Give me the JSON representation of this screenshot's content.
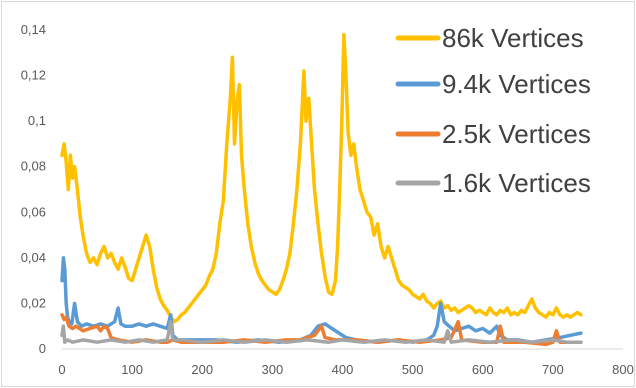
{
  "chart_data": {
    "type": "line",
    "title": "",
    "xlabel": "",
    "ylabel": "",
    "xlim": [
      0,
      800
    ],
    "ylim": [
      0,
      0.14
    ],
    "x_ticks": [
      "0",
      "100",
      "200",
      "300",
      "400",
      "500",
      "600",
      "700",
      "800"
    ],
    "y_ticks": [
      "0",
      "0,02",
      "0,04",
      "0,06",
      "0,08",
      "0,1",
      "0,12",
      "0,14"
    ],
    "grid": false,
    "legend_position": "top-right",
    "series": [
      {
        "name": "86k Vertices",
        "color": "#FFC000",
        "points": [
          [
            0,
            0.085
          ],
          [
            3,
            0.09
          ],
          [
            6,
            0.082
          ],
          [
            9,
            0.07
          ],
          [
            12,
            0.085
          ],
          [
            15,
            0.075
          ],
          [
            18,
            0.08
          ],
          [
            22,
            0.07
          ],
          [
            26,
            0.058
          ],
          [
            30,
            0.05
          ],
          [
            35,
            0.042
          ],
          [
            40,
            0.038
          ],
          [
            45,
            0.04
          ],
          [
            50,
            0.037
          ],
          [
            55,
            0.042
          ],
          [
            60,
            0.045
          ],
          [
            65,
            0.04
          ],
          [
            70,
            0.042
          ],
          [
            75,
            0.038
          ],
          [
            80,
            0.035
          ],
          [
            85,
            0.04
          ],
          [
            90,
            0.036
          ],
          [
            95,
            0.031
          ],
          [
            100,
            0.03
          ],
          [
            105,
            0.035
          ],
          [
            110,
            0.04
          ],
          [
            115,
            0.045
          ],
          [
            120,
            0.05
          ],
          [
            125,
            0.045
          ],
          [
            130,
            0.035
          ],
          [
            135,
            0.027
          ],
          [
            140,
            0.022
          ],
          [
            145,
            0.019
          ],
          [
            150,
            0.017
          ],
          [
            155,
            0.014
          ],
          [
            160,
            0.012
          ],
          [
            165,
            0.013
          ],
          [
            170,
            0.015
          ],
          [
            175,
            0.016
          ],
          [
            180,
            0.018
          ],
          [
            185,
            0.02
          ],
          [
            190,
            0.022
          ],
          [
            195,
            0.024
          ],
          [
            200,
            0.026
          ],
          [
            205,
            0.028
          ],
          [
            210,
            0.032
          ],
          [
            215,
            0.035
          ],
          [
            220,
            0.042
          ],
          [
            225,
            0.055
          ],
          [
            230,
            0.065
          ],
          [
            235,
            0.09
          ],
          [
            240,
            0.11
          ],
          [
            243,
            0.128
          ],
          [
            246,
            0.09
          ],
          [
            250,
            0.11
          ],
          [
            253,
            0.116
          ],
          [
            256,
            0.085
          ],
          [
            260,
            0.07
          ],
          [
            265,
            0.055
          ],
          [
            270,
            0.045
          ],
          [
            275,
            0.038
          ],
          [
            280,
            0.033
          ],
          [
            285,
            0.03
          ],
          [
            290,
            0.028
          ],
          [
            295,
            0.026
          ],
          [
            300,
            0.025
          ],
          [
            305,
            0.024
          ],
          [
            310,
            0.026
          ],
          [
            315,
            0.03
          ],
          [
            320,
            0.035
          ],
          [
            325,
            0.042
          ],
          [
            330,
            0.055
          ],
          [
            335,
            0.07
          ],
          [
            340,
            0.09
          ],
          [
            345,
            0.122
          ],
          [
            348,
            0.1
          ],
          [
            352,
            0.11
          ],
          [
            356,
            0.09
          ],
          [
            360,
            0.07
          ],
          [
            365,
            0.055
          ],
          [
            370,
            0.042
          ],
          [
            375,
            0.032
          ],
          [
            380,
            0.025
          ],
          [
            385,
            0.024
          ],
          [
            390,
            0.03
          ],
          [
            393,
            0.045
          ],
          [
            396,
            0.07
          ],
          [
            399,
            0.1
          ],
          [
            402,
            0.138
          ],
          [
            405,
            0.12
          ],
          [
            408,
            0.095
          ],
          [
            412,
            0.085
          ],
          [
            416,
            0.09
          ],
          [
            420,
            0.08
          ],
          [
            425,
            0.07
          ],
          [
            430,
            0.065
          ],
          [
            435,
            0.06
          ],
          [
            440,
            0.058
          ],
          [
            445,
            0.05
          ],
          [
            450,
            0.055
          ],
          [
            455,
            0.045
          ],
          [
            460,
            0.04
          ],
          [
            465,
            0.045
          ],
          [
            470,
            0.04
          ],
          [
            475,
            0.035
          ],
          [
            480,
            0.03
          ],
          [
            485,
            0.028
          ],
          [
            490,
            0.027
          ],
          [
            495,
            0.026
          ],
          [
            500,
            0.024
          ],
          [
            505,
            0.023
          ],
          [
            510,
            0.022
          ],
          [
            515,
            0.024
          ],
          [
            520,
            0.021
          ],
          [
            525,
            0.02
          ],
          [
            530,
            0.018
          ],
          [
            535,
            0.02
          ],
          [
            540,
            0.021
          ],
          [
            545,
            0.018
          ],
          [
            550,
            0.019
          ],
          [
            555,
            0.017
          ],
          [
            560,
            0.018
          ],
          [
            565,
            0.016
          ],
          [
            570,
            0.017
          ],
          [
            575,
            0.018
          ],
          [
            580,
            0.019
          ],
          [
            585,
            0.018
          ],
          [
            590,
            0.016
          ],
          [
            595,
            0.017
          ],
          [
            600,
            0.016
          ],
          [
            605,
            0.015
          ],
          [
            610,
            0.018
          ],
          [
            615,
            0.016
          ],
          [
            620,
            0.015
          ],
          [
            625,
            0.017
          ],
          [
            630,
            0.016
          ],
          [
            635,
            0.018
          ],
          [
            640,
            0.015
          ],
          [
            645,
            0.016
          ],
          [
            650,
            0.015
          ],
          [
            655,
            0.017
          ],
          [
            660,
            0.016
          ],
          [
            665,
            0.019
          ],
          [
            670,
            0.022
          ],
          [
            675,
            0.018
          ],
          [
            680,
            0.016
          ],
          [
            685,
            0.015
          ],
          [
            690,
            0.014
          ],
          [
            695,
            0.016
          ],
          [
            700,
            0.015
          ],
          [
            705,
            0.018
          ],
          [
            710,
            0.015
          ],
          [
            715,
            0.014
          ],
          [
            720,
            0.015
          ],
          [
            725,
            0.014
          ],
          [
            730,
            0.015
          ],
          [
            735,
            0.016
          ],
          [
            740,
            0.015
          ]
        ]
      },
      {
        "name": "9.4k Vertices",
        "color": "#5B9BD5",
        "points": [
          [
            0,
            0.03
          ],
          [
            2,
            0.04
          ],
          [
            4,
            0.035
          ],
          [
            6,
            0.02
          ],
          [
            8,
            0.014
          ],
          [
            10,
            0.012
          ],
          [
            14,
            0.011
          ],
          [
            18,
            0.02
          ],
          [
            22,
            0.012
          ],
          [
            28,
            0.01
          ],
          [
            35,
            0.011
          ],
          [
            45,
            0.01
          ],
          [
            55,
            0.011
          ],
          [
            65,
            0.01
          ],
          [
            75,
            0.012
          ],
          [
            80,
            0.018
          ],
          [
            84,
            0.011
          ],
          [
            90,
            0.01
          ],
          [
            100,
            0.01
          ],
          [
            110,
            0.011
          ],
          [
            120,
            0.01
          ],
          [
            130,
            0.011
          ],
          [
            140,
            0.01
          ],
          [
            150,
            0.009
          ],
          [
            155,
            0.015
          ],
          [
            158,
            0.006
          ],
          [
            165,
            0.004
          ],
          [
            180,
            0.004
          ],
          [
            200,
            0.004
          ],
          [
            220,
            0.004
          ],
          [
            250,
            0.003
          ],
          [
            280,
            0.004
          ],
          [
            310,
            0.003
          ],
          [
            340,
            0.004
          ],
          [
            355,
            0.006
          ],
          [
            365,
            0.01
          ],
          [
            375,
            0.011
          ],
          [
            385,
            0.009
          ],
          [
            395,
            0.007
          ],
          [
            405,
            0.005
          ],
          [
            420,
            0.004
          ],
          [
            450,
            0.003
          ],
          [
            480,
            0.004
          ],
          [
            500,
            0.003
          ],
          [
            520,
            0.004
          ],
          [
            530,
            0.006
          ],
          [
            535,
            0.01
          ],
          [
            540,
            0.02
          ],
          [
            545,
            0.012
          ],
          [
            552,
            0.01
          ],
          [
            560,
            0.008
          ],
          [
            570,
            0.009
          ],
          [
            580,
            0.01
          ],
          [
            590,
            0.008
          ],
          [
            600,
            0.009
          ],
          [
            610,
            0.007
          ],
          [
            620,
            0.01
          ],
          [
            625,
            0.006
          ],
          [
            635,
            0.004
          ],
          [
            650,
            0.004
          ],
          [
            670,
            0.003
          ],
          [
            690,
            0.004
          ],
          [
            710,
            0.005
          ],
          [
            725,
            0.006
          ],
          [
            740,
            0.007
          ]
        ]
      },
      {
        "name": "2.5k  Vertices",
        "color": "#ED7D31",
        "points": [
          [
            0,
            0.015
          ],
          [
            3,
            0.013
          ],
          [
            6,
            0.014
          ],
          [
            10,
            0.01
          ],
          [
            15,
            0.009
          ],
          [
            20,
            0.01
          ],
          [
            30,
            0.008
          ],
          [
            40,
            0.009
          ],
          [
            50,
            0.01
          ],
          [
            55,
            0.008
          ],
          [
            60,
            0.01
          ],
          [
            65,
            0.009
          ],
          [
            70,
            0.005
          ],
          [
            80,
            0.004
          ],
          [
            100,
            0.003
          ],
          [
            120,
            0.004
          ],
          [
            140,
            0.003
          ],
          [
            150,
            0.003
          ],
          [
            158,
            0.004
          ],
          [
            170,
            0.003
          ],
          [
            200,
            0.003
          ],
          [
            230,
            0.003
          ],
          [
            260,
            0.004
          ],
          [
            290,
            0.003
          ],
          [
            320,
            0.004
          ],
          [
            340,
            0.004
          ],
          [
            350,
            0.005
          ],
          [
            360,
            0.006
          ],
          [
            370,
            0.01
          ],
          [
            375,
            0.005
          ],
          [
            390,
            0.004
          ],
          [
            420,
            0.004
          ],
          [
            450,
            0.003
          ],
          [
            480,
            0.004
          ],
          [
            510,
            0.003
          ],
          [
            540,
            0.004
          ],
          [
            555,
            0.005
          ],
          [
            565,
            0.012
          ],
          [
            570,
            0.004
          ],
          [
            600,
            0.003
          ],
          [
            620,
            0.003
          ],
          [
            625,
            0.01
          ],
          [
            630,
            0.003
          ],
          [
            660,
            0.003
          ],
          [
            690,
            0.002
          ],
          [
            700,
            0.003
          ],
          [
            705,
            0.008
          ],
          [
            710,
            0.003
          ],
          [
            740,
            0.003
          ]
        ]
      },
      {
        "name": "1.6k Vertices",
        "color": "#A5A5A5",
        "points": [
          [
            0,
            0.006
          ],
          [
            2,
            0.01
          ],
          [
            4,
            0.003
          ],
          [
            8,
            0.004
          ],
          [
            15,
            0.003
          ],
          [
            30,
            0.004
          ],
          [
            50,
            0.003
          ],
          [
            70,
            0.004
          ],
          [
            90,
            0.003
          ],
          [
            110,
            0.004
          ],
          [
            130,
            0.003
          ],
          [
            150,
            0.004
          ],
          [
            155,
            0.012
          ],
          [
            158,
            0.004
          ],
          [
            170,
            0.004
          ],
          [
            200,
            0.003
          ],
          [
            230,
            0.004
          ],
          [
            260,
            0.003
          ],
          [
            290,
            0.004
          ],
          [
            320,
            0.003
          ],
          [
            350,
            0.004
          ],
          [
            380,
            0.003
          ],
          [
            400,
            0.004
          ],
          [
            430,
            0.003
          ],
          [
            460,
            0.004
          ],
          [
            490,
            0.003
          ],
          [
            520,
            0.004
          ],
          [
            545,
            0.003
          ],
          [
            550,
            0.008
          ],
          [
            555,
            0.003
          ],
          [
            580,
            0.004
          ],
          [
            610,
            0.003
          ],
          [
            640,
            0.004
          ],
          [
            670,
            0.003
          ],
          [
            700,
            0.004
          ],
          [
            720,
            0.003
          ],
          [
            740,
            0.003
          ]
        ]
      }
    ]
  }
}
